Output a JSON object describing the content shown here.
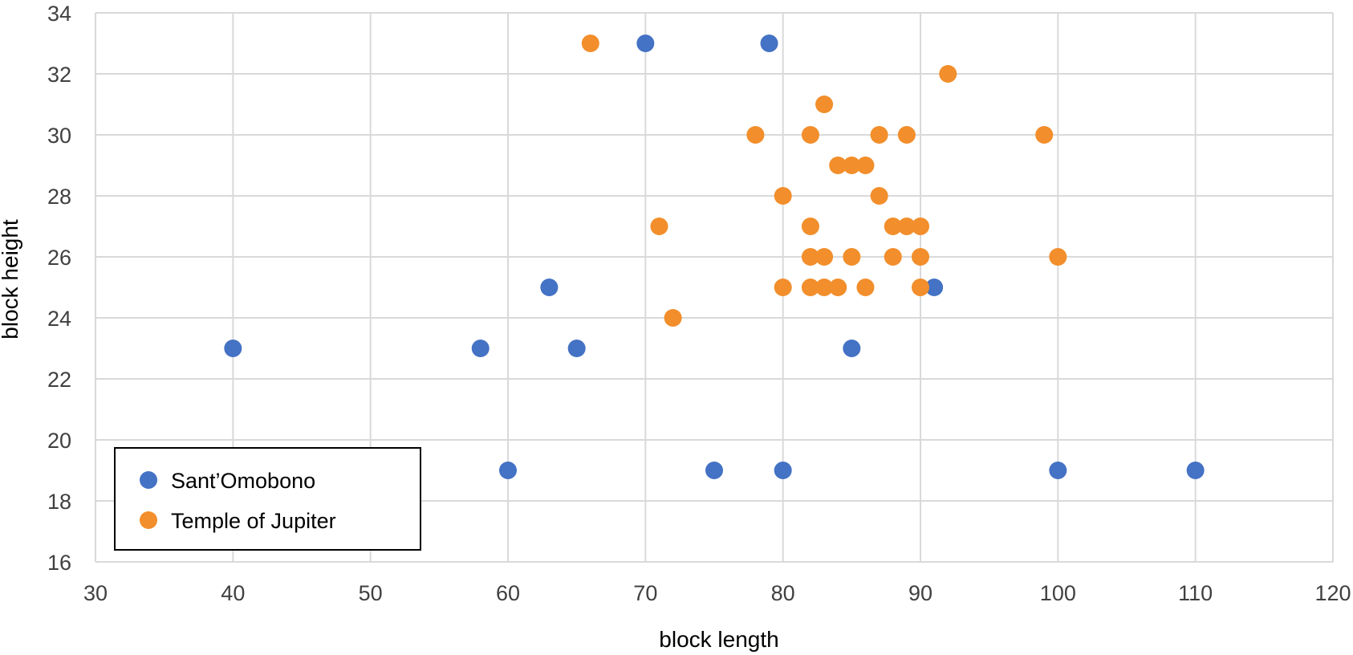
{
  "chart_data": {
    "type": "scatter",
    "title": "",
    "xlabel": "block length",
    "ylabel": "block height",
    "xlim": [
      30,
      120
    ],
    "ylim": [
      16,
      34
    ],
    "xticks": [
      30,
      40,
      50,
      60,
      70,
      80,
      90,
      100,
      110,
      120
    ],
    "yticks": [
      16,
      18,
      20,
      22,
      24,
      26,
      28,
      30,
      32,
      34
    ],
    "xtick_labels": [
      "30",
      "40",
      "50",
      "60",
      "70",
      "80",
      "90",
      "100",
      "110",
      "120"
    ],
    "ytick_labels": [
      "16",
      "18",
      "20",
      "22",
      "24",
      "26",
      "28",
      "30",
      "32",
      "34"
    ],
    "grid": true,
    "legend_position": "bottom-left",
    "series": [
      {
        "name": "Sant’Omobono",
        "color": "#4472c4",
        "points": [
          [
            40,
            23
          ],
          [
            58,
            23
          ],
          [
            60,
            19
          ],
          [
            63,
            25
          ],
          [
            65,
            23
          ],
          [
            70,
            33
          ],
          [
            75,
            19
          ],
          [
            79,
            33
          ],
          [
            80,
            19
          ],
          [
            85,
            23
          ],
          [
            91,
            25
          ],
          [
            100,
            19
          ],
          [
            110,
            19
          ]
        ]
      },
      {
        "name": "Temple of Jupiter",
        "color": "#f28e2b",
        "points": [
          [
            66,
            33
          ],
          [
            71,
            27
          ],
          [
            72,
            24
          ],
          [
            78,
            30
          ],
          [
            80,
            28
          ],
          [
            80,
            25
          ],
          [
            82,
            30
          ],
          [
            82,
            27
          ],
          [
            82,
            26
          ],
          [
            82,
            25
          ],
          [
            83,
            31
          ],
          [
            83,
            26
          ],
          [
            83,
            25
          ],
          [
            84,
            29
          ],
          [
            84,
            25
          ],
          [
            85,
            29
          ],
          [
            85,
            26
          ],
          [
            86,
            29
          ],
          [
            86,
            25
          ],
          [
            87,
            30
          ],
          [
            87,
            28
          ],
          [
            88,
            27
          ],
          [
            88,
            26
          ],
          [
            89,
            30
          ],
          [
            89,
            27
          ],
          [
            90,
            27
          ],
          [
            90,
            26
          ],
          [
            90,
            25
          ],
          [
            92,
            32
          ],
          [
            99,
            30
          ],
          [
            100,
            26
          ]
        ]
      }
    ]
  }
}
